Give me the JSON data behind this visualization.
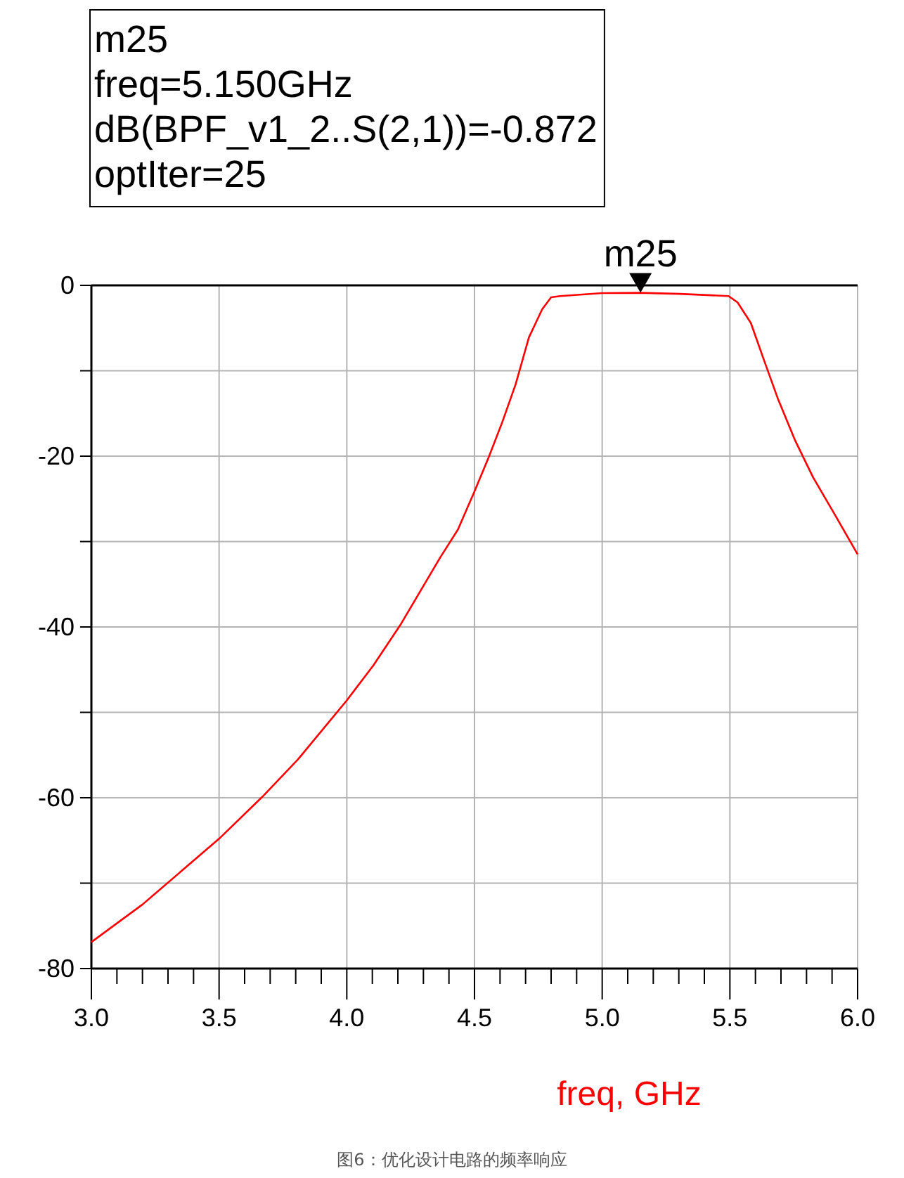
{
  "chart_data": {
    "type": "line",
    "xlabel": "freq, GHz",
    "x": [
      3.0,
      3.2,
      3.5,
      3.669,
      3.809,
      4.0,
      4.104,
      4.209,
      4.365,
      4.435,
      4.499,
      4.556,
      4.609,
      4.661,
      4.713,
      4.765,
      4.8,
      4.835,
      5.0,
      5.15,
      5.304,
      5.495,
      5.53,
      5.582,
      5.634,
      5.687,
      5.756,
      5.826,
      5.912,
      6.0
    ],
    "series": [
      {
        "color": "#ff0000",
        "values": [
          -76.9,
          -72.5,
          -64.8,
          -59.9,
          -55.5,
          -48.6,
          -44.5,
          -39.8,
          -31.9,
          -28.6,
          -24.2,
          -20.1,
          -16.0,
          -11.6,
          -6.1,
          -2.8,
          -1.4,
          -1.25,
          -0.9,
          -0.872,
          -1.0,
          -1.25,
          -2.0,
          -4.4,
          -8.8,
          -13.2,
          -18.2,
          -22.5,
          -26.9,
          -31.5
        ]
      }
    ],
    "xlim": [
      3.0,
      6.0
    ],
    "xticks": [
      {
        "value": 3.0,
        "label": "3.0"
      },
      {
        "value": 3.1,
        "label": null
      },
      {
        "value": 3.2,
        "label": null
      },
      {
        "value": 3.3,
        "label": null
      },
      {
        "value": 3.4,
        "label": null
      },
      {
        "value": 3.5,
        "label": "3.5"
      },
      {
        "value": 3.6,
        "label": null
      },
      {
        "value": 3.7,
        "label": null
      },
      {
        "value": 3.8,
        "label": null
      },
      {
        "value": 3.9,
        "label": null
      },
      {
        "value": 4.0,
        "label": "4.0"
      },
      {
        "value": 4.1,
        "label": null
      },
      {
        "value": 4.2,
        "label": null
      },
      {
        "value": 4.3,
        "label": null
      },
      {
        "value": 4.4,
        "label": null
      },
      {
        "value": 4.5,
        "label": "4.5"
      },
      {
        "value": 4.6,
        "label": null
      },
      {
        "value": 4.7,
        "label": null
      },
      {
        "value": 4.8,
        "label": null
      },
      {
        "value": 4.9,
        "label": null
      },
      {
        "value": 5.0,
        "label": "5.0"
      },
      {
        "value": 5.1,
        "label": null
      },
      {
        "value": 5.2,
        "label": null
      },
      {
        "value": 5.3,
        "label": null
      },
      {
        "value": 5.4,
        "label": null
      },
      {
        "value": 5.5,
        "label": "5.5"
      },
      {
        "value": 5.6,
        "label": null
      },
      {
        "value": 5.7,
        "label": null
      },
      {
        "value": 5.8,
        "label": null
      },
      {
        "value": 5.9,
        "label": null
      },
      {
        "value": 6.0,
        "label": "6.0"
      }
    ],
    "ylim": [
      -80,
      0
    ],
    "yticks": [
      -80,
      {
        "value": -70,
        "label": null
      },
      -60,
      {
        "value": -50,
        "label": null
      },
      -40,
      {
        "value": -30,
        "label": null
      },
      -20,
      {
        "value": -10,
        "label": null
      },
      0
    ],
    "grid": true,
    "annotations": [
      "m25",
      "freq=5.150GHz",
      "dB(BPF_v1_2..S(2,1))=-0.872",
      "optIter=25",
      {
        "text": "m25",
        "x": 5.15,
        "y": -0.872
      },
      "图6：优化设计电路的频率响应"
    ]
  }
}
